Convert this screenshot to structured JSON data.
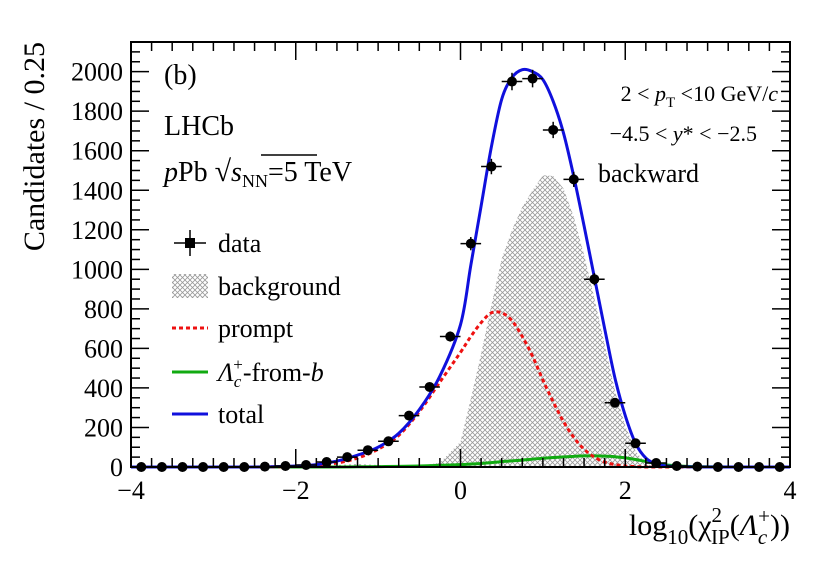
{
  "chart_data": {
    "type": "histogram-fit",
    "panel_label": "(b)",
    "experiment": "LHCb",
    "system": {
      "pre": "p",
      "mid": "Pb ",
      "s": "s",
      "sub": "NN",
      "post": "=5 TeV"
    },
    "annotations": [
      {
        "parts": [
          "2 < ",
          "p",
          "T",
          " <10 GeV/",
          "c"
        ]
      },
      {
        "parts": [
          "−4.5 < ",
          "y",
          "* < −2.5"
        ]
      },
      {
        "parts": [
          "backward"
        ]
      }
    ],
    "xlabel": {
      "pre": "log",
      "sub1": "10",
      "mid": "(χ",
      "sup2": "2",
      "sub2": "IP",
      "mid2": "(",
      "lam": "Λ",
      "sub3": "c",
      "sup3": "+",
      "post": "))"
    },
    "ylabel": "Candidates / 0.25",
    "xlim": [
      -4,
      4
    ],
    "ylim": [
      0,
      2150
    ],
    "xticks": [
      -4,
      -2,
      0,
      2,
      4
    ],
    "yticks": [
      0,
      200,
      400,
      600,
      800,
      1000,
      1200,
      1400,
      1600,
      1800,
      2000
    ],
    "legend": {
      "position": "left",
      "entries": [
        {
          "key": "data",
          "label": "data"
        },
        {
          "key": "background",
          "label": "background"
        },
        {
          "key": "prompt",
          "label": "prompt"
        },
        {
          "key": "fromb",
          "label": "-from-",
          "lam": "Λ",
          "sub": "c",
          "sup": "+",
          "b": "b"
        },
        {
          "key": "total",
          "label": "total"
        }
      ]
    },
    "colors": {
      "total": "#1010dd",
      "prompt": "#ee1111",
      "fromb": "#11aa11",
      "background": "#9a9a9a",
      "data": "#000000"
    },
    "data": {
      "x": [
        -3.875,
        -3.625,
        -3.375,
        -3.125,
        -2.875,
        -2.625,
        -2.375,
        -2.125,
        -1.875,
        -1.625,
        -1.375,
        -1.125,
        -0.875,
        -0.625,
        -0.375,
        -0.125,
        0.125,
        0.375,
        0.625,
        0.875,
        1.125,
        1.375,
        1.625,
        1.875,
        2.125,
        2.375,
        2.625,
        2.875,
        3.125,
        3.375,
        3.625,
        3.875
      ],
      "y": [
        0,
        0,
        0,
        0,
        0,
        0,
        2,
        5,
        10,
        25,
        50,
        85,
        130,
        260,
        405,
        660,
        1130,
        1520,
        1950,
        1965,
        1705,
        1455,
        950,
        325,
        120,
        20,
        5,
        2,
        0,
        0,
        0,
        0
      ]
    },
    "components": {
      "x": [
        -4.0,
        -3.5,
        -3.0,
        -2.5,
        -2.25,
        -2.0,
        -1.75,
        -1.5,
        -1.25,
        -1.0,
        -0.75,
        -0.5,
        -0.25,
        0.0,
        0.125,
        0.25,
        0.375,
        0.5,
        0.625,
        0.75,
        0.875,
        1.0,
        1.125,
        1.25,
        1.375,
        1.5,
        1.625,
        1.75,
        1.875,
        2.0,
        2.125,
        2.25,
        2.375,
        2.5,
        2.75,
        3.0,
        3.5,
        4.0
      ],
      "total": [
        0,
        0,
        0,
        0,
        2,
        5,
        12,
        30,
        60,
        100,
        170,
        290,
        460,
        720,
        1020,
        1320,
        1620,
        1860,
        1970,
        2010,
        2000,
        1960,
        1850,
        1690,
        1470,
        1220,
        960,
        700,
        450,
        260,
        120,
        45,
        15,
        5,
        1,
        0,
        0,
        0
      ],
      "prompt": [
        0,
        0,
        0,
        0,
        1,
        3,
        8,
        20,
        45,
        90,
        160,
        280,
        430,
        580,
        660,
        730,
        780,
        780,
        740,
        660,
        560,
        440,
        330,
        230,
        150,
        90,
        50,
        25,
        12,
        5,
        2,
        0,
        0,
        0,
        0,
        0,
        0,
        0
      ],
      "fromb": [
        0,
        0,
        0,
        0,
        0,
        0,
        0,
        0,
        1,
        2,
        3,
        5,
        8,
        12,
        15,
        18,
        22,
        27,
        31,
        35,
        40,
        44,
        48,
        51,
        54,
        56,
        56,
        55,
        52,
        46,
        38,
        28,
        18,
        10,
        3,
        1,
        0,
        0
      ],
      "background": [
        0,
        0,
        0,
        0,
        1,
        2,
        4,
        10,
        15,
        10,
        7,
        5,
        22,
        128,
        345,
        572,
        818,
        1053,
        1199,
        1315,
        1400,
        1476,
        1472,
        1409,
        1266,
        1074,
        854,
        620,
        386,
        209,
        80,
        17,
        0,
        0,
        0,
        0,
        0,
        0
      ]
    }
  }
}
